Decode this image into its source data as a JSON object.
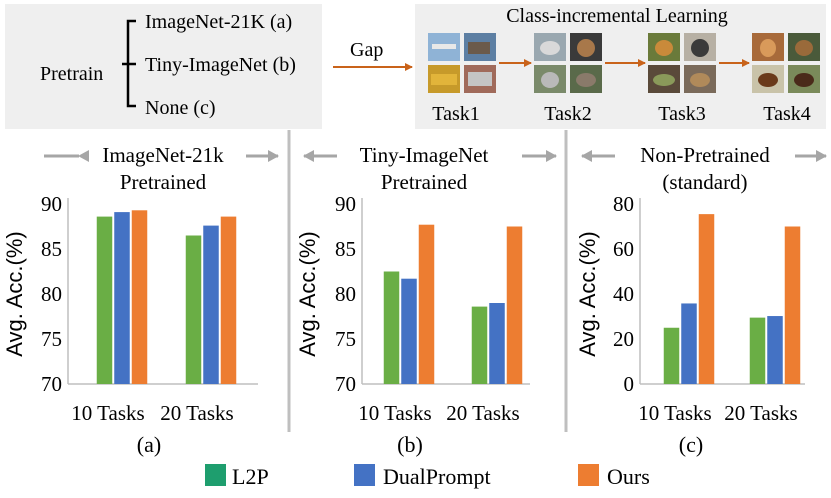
{
  "top": {
    "pretrain_label": "Pretrain",
    "options": [
      "ImageNet-21K (a)",
      "Tiny-ImageNet (b)",
      "None (c)"
    ],
    "gap_label": "Gap",
    "cil_title": "Class-incremental Learning",
    "tasks": [
      "Task1",
      "Task2",
      "Task3",
      "Task4"
    ]
  },
  "legend": [
    {
      "name": "L2P",
      "color": "#6AAE45"
    },
    {
      "name": "DualPrompt",
      "color": "#4472C4"
    },
    {
      "name": "Ours",
      "color": "#ED7D31"
    }
  ],
  "legend_swatch_color": "#1E9E6E",
  "colors": {
    "header_bg": "#efefef",
    "arrow": "#c9631a",
    "divider": "#bfbfbf",
    "gray_arrow": "#a6a6a6"
  },
  "chart_data": [
    {
      "type": "bar",
      "title_lines": [
        "ImageNet-21k",
        "Pretrained"
      ],
      "caption": "(a)",
      "ylabel": "Avg. Acc.(%)",
      "ylim": [
        70,
        90
      ],
      "yticks": [
        70,
        75,
        80,
        85,
        90
      ],
      "categories": [
        "10 Tasks",
        "20 Tasks"
      ],
      "series": [
        {
          "name": "L2P",
          "values": [
            88.6,
            86.5
          ]
        },
        {
          "name": "DualPrompt",
          "values": [
            89.1,
            87.6
          ]
        },
        {
          "name": "Ours",
          "values": [
            89.3,
            88.6
          ]
        }
      ]
    },
    {
      "type": "bar",
      "title_lines": [
        "Tiny-ImageNet",
        "Pretrained"
      ],
      "caption": "(b)",
      "ylabel": "Avg. Acc.(%)",
      "ylim": [
        70,
        90
      ],
      "yticks": [
        70,
        75,
        80,
        85,
        90
      ],
      "categories": [
        "10 Tasks",
        "20 Tasks"
      ],
      "series": [
        {
          "name": "L2P",
          "values": [
            82.5,
            78.6
          ]
        },
        {
          "name": "DualPrompt",
          "values": [
            81.7,
            79.0
          ]
        },
        {
          "name": "Ours",
          "values": [
            87.7,
            87.5
          ]
        }
      ]
    },
    {
      "type": "bar",
      "title_lines": [
        "Non-Pretrained",
        "(standard)"
      ],
      "caption": "(c)",
      "ylabel": "Avg. Acc.(%)",
      "ylim": [
        0,
        80
      ],
      "yticks": [
        0,
        20,
        40,
        60,
        80
      ],
      "categories": [
        "10 Tasks",
        "20 Tasks"
      ],
      "series": [
        {
          "name": "L2P",
          "values": [
            25,
            29.5
          ]
        },
        {
          "name": "DualPrompt",
          "values": [
            35.8,
            30.2
          ]
        },
        {
          "name": "Ours",
          "values": [
            75.5,
            70
          ]
        }
      ]
    }
  ]
}
